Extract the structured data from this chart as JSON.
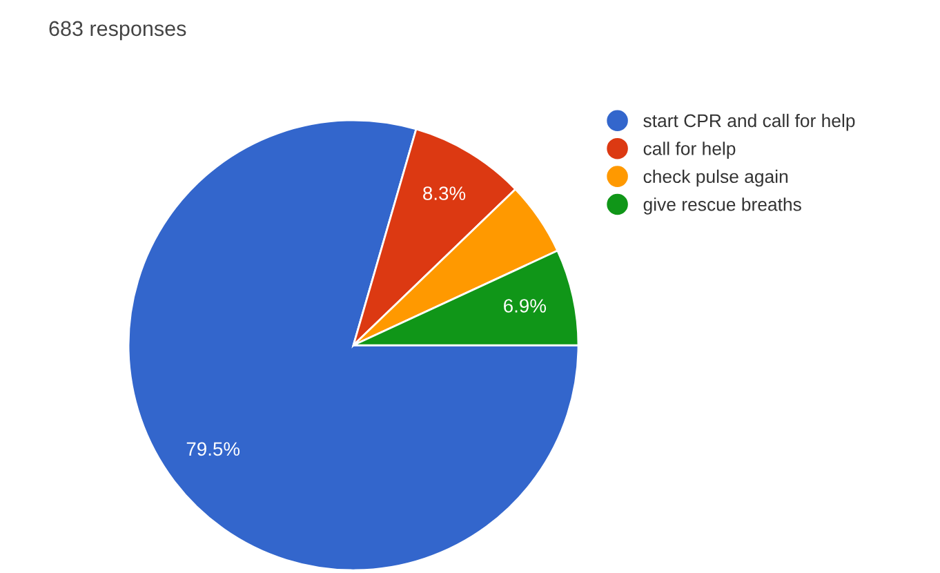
{
  "chart_data": {
    "type": "pie",
    "title": "683 responses",
    "categories": [
      "start CPR and call for help",
      "call for help",
      "check pulse again",
      "give rescue breaths"
    ],
    "values": [
      79.5,
      8.3,
      5.3,
      6.9
    ],
    "colors": [
      "#3366cc",
      "#dc3912",
      "#ff9900",
      "#109618"
    ],
    "value_labels": [
      "79.5%",
      "8.3%",
      null,
      "6.9%"
    ],
    "legend": "right"
  }
}
